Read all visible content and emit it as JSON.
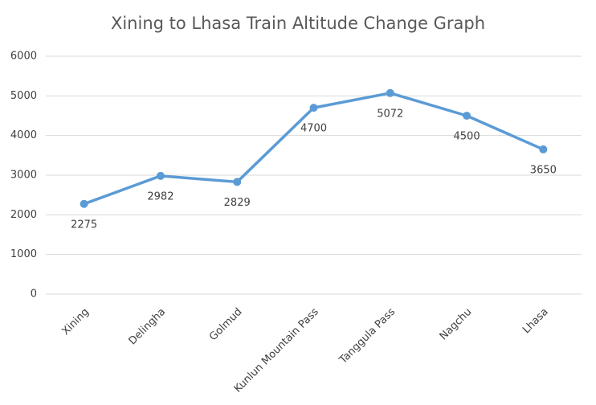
{
  "chart_data": {
    "type": "line",
    "title": "Xining to Lhasa Train Altitude Change Graph",
    "categories": [
      "Xining",
      "Delingha",
      "Golmud",
      "Kunlun Mountain Pass",
      "Tanggula Pass",
      "Nagchu",
      "Lhasa"
    ],
    "values": [
      2275,
      2982,
      2829,
      4700,
      5072,
      4500,
      3650
    ],
    "color": "#5b9bd5",
    "ylim": [
      0,
      6000
    ],
    "yticks": [
      0,
      1000,
      2000,
      3000,
      4000,
      5000,
      6000
    ],
    "grid": true
  }
}
